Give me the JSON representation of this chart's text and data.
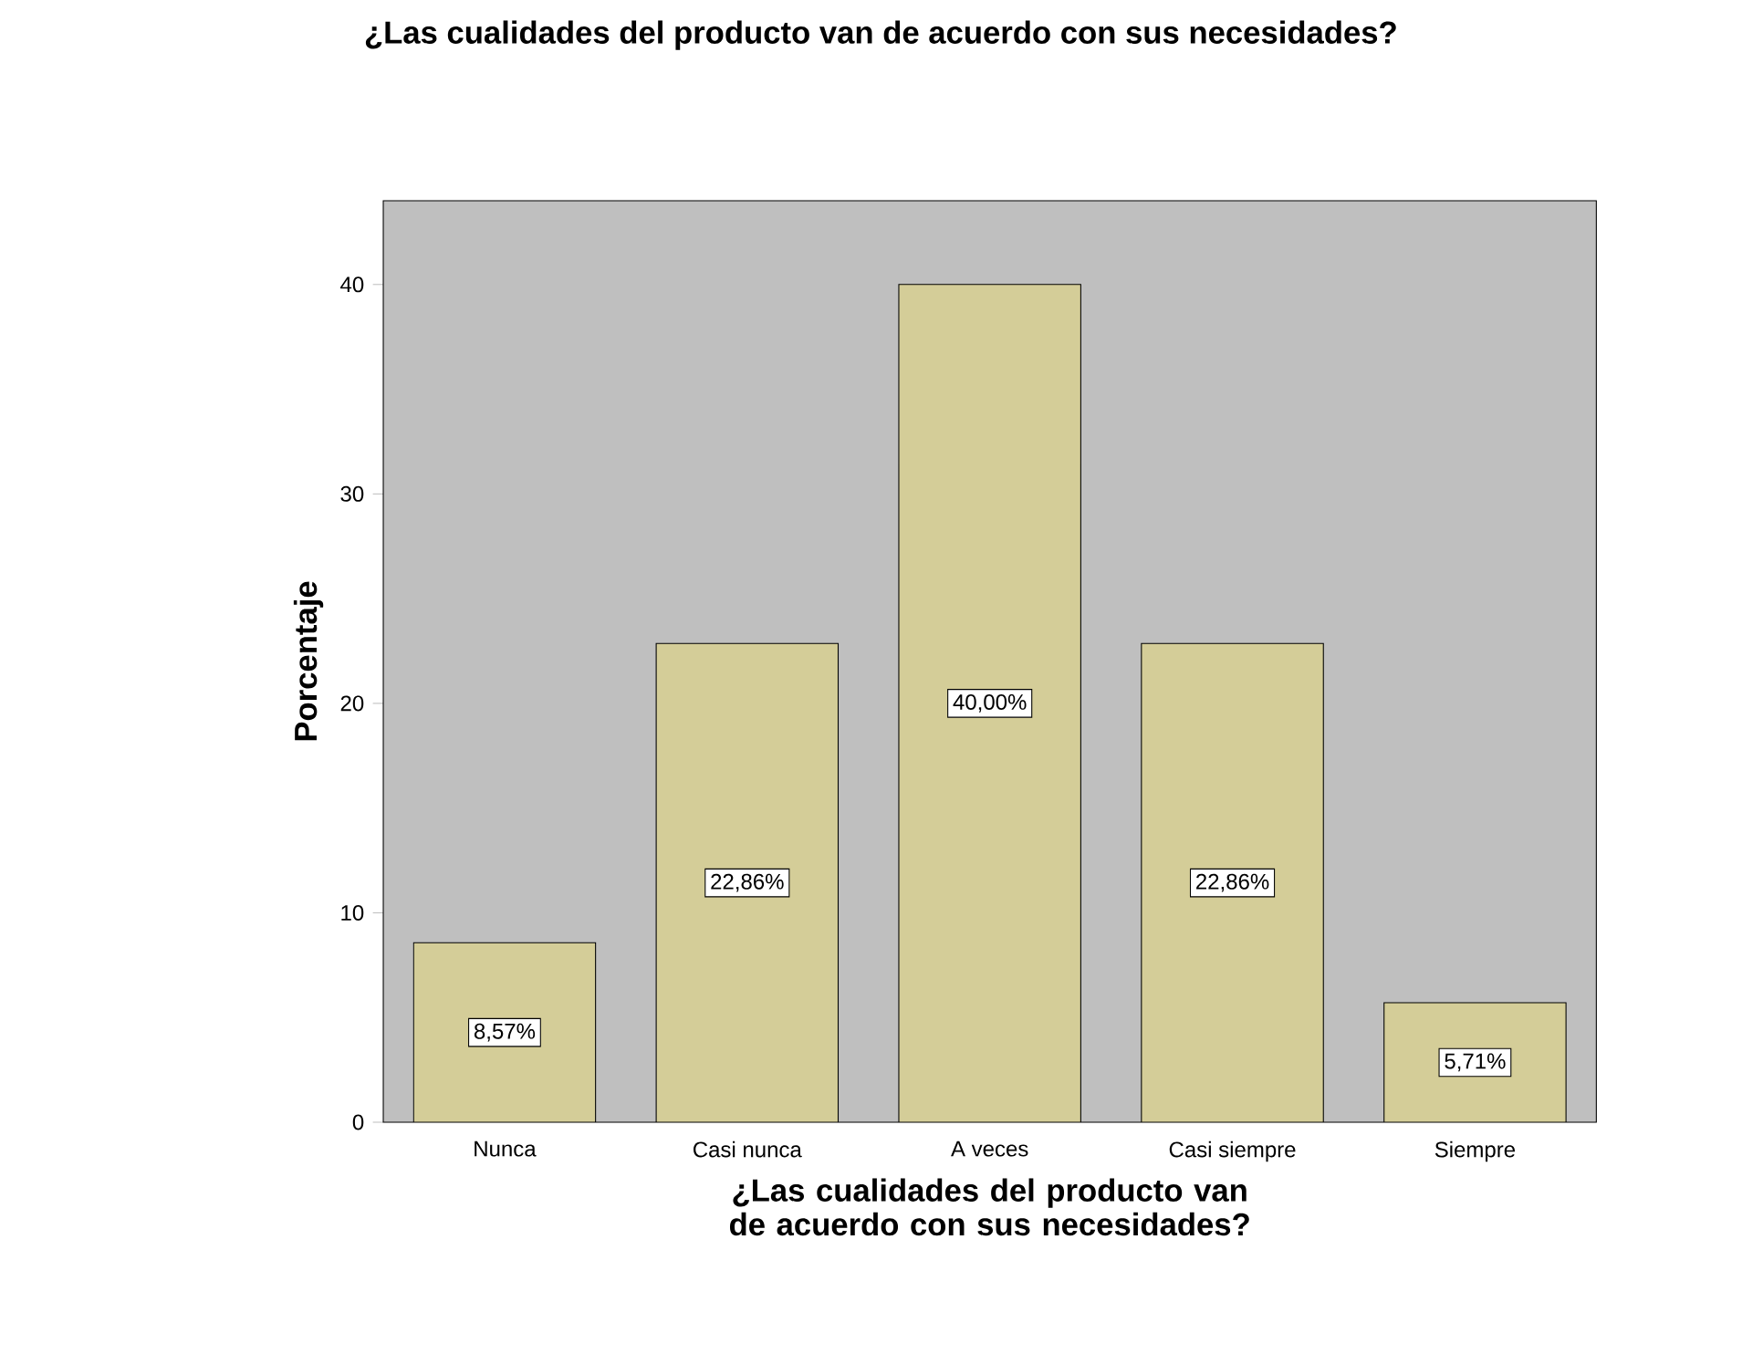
{
  "chart_data": {
    "type": "bar",
    "title": "¿Las cualidades del producto van de acuerdo con sus necesidades?",
    "xlabel": "¿Las cualidades del producto van de acuerdo con sus necesidades?",
    "ylabel": "Porcentaje",
    "categories": [
      "Nunca",
      "Casi nunca",
      "A veces",
      "Casi siempre",
      "Siempre"
    ],
    "values": [
      8.57,
      22.86,
      40.0,
      22.86,
      5.71
    ],
    "value_labels": [
      "8,57%",
      "22,86%",
      "40,00%",
      "22,86%",
      "5,71%"
    ],
    "color": "#d4cd98",
    "ylim": [
      0,
      44
    ],
    "yticks": [
      0,
      10,
      20,
      30,
      40
    ]
  }
}
